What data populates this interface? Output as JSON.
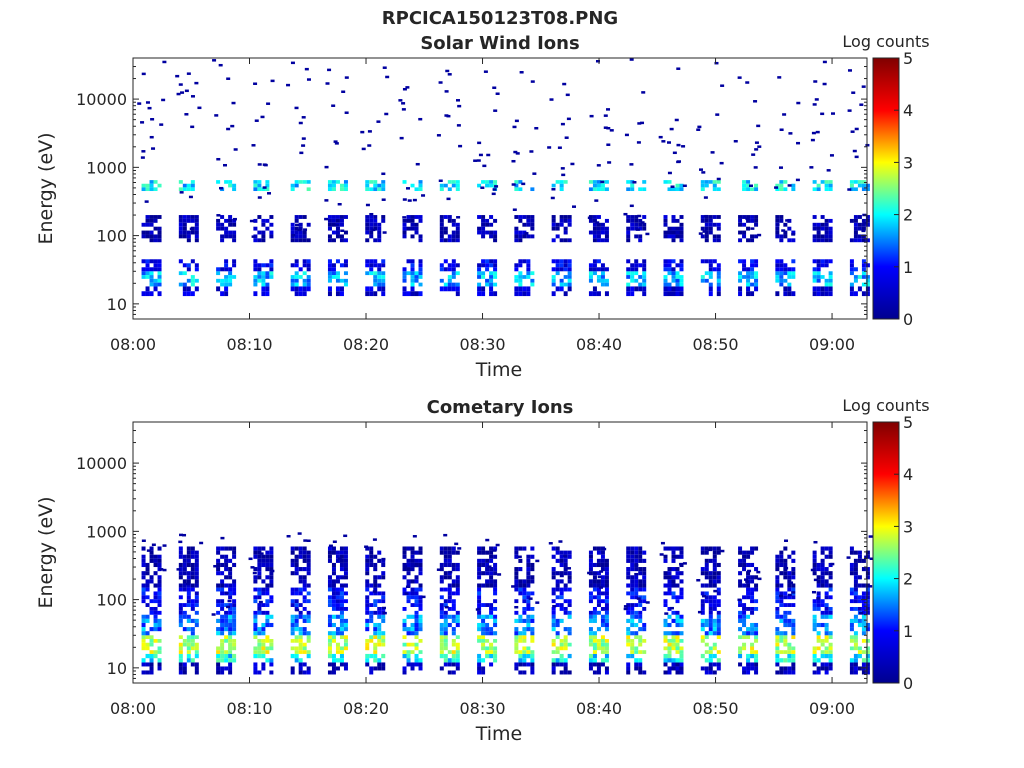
{
  "figure": {
    "title": "RPCICA150123T08.PNG"
  },
  "colormap": {
    "name": "jet",
    "stops": [
      "#00008f",
      "#0000ff",
      "#00ffff",
      "#ffff00",
      "#ff0000",
      "#800000"
    ]
  },
  "chart_data": [
    {
      "type": "heatmap",
      "title": "Solar Wind Ions",
      "xlabel": "Time",
      "ylabel": "Energy (eV)",
      "x_ticks": [
        "08:00",
        "08:10",
        "08:20",
        "08:30",
        "08:40",
        "08:50",
        "09:00"
      ],
      "x_range_minutes": [
        0,
        63
      ],
      "y_scale": "log",
      "y_ticks": [
        10,
        100,
        1000,
        10000
      ],
      "y_ticks_labels": [
        "10",
        "100",
        "1000",
        "10000"
      ],
      "ylim": [
        6,
        40000
      ],
      "colorbar": {
        "label": "Log counts",
        "ticks": [
          "0",
          "1",
          "2",
          "3",
          "4",
          "5"
        ],
        "range": [
          0,
          5
        ]
      },
      "sweep_period_minutes": 3.2,
      "n_sweeps": 20,
      "bands": [
        {
          "energy_eV": [
            13,
            18
          ],
          "log_counts": 0.6
        },
        {
          "energy_eV": [
            18,
            30
          ],
          "log_counts": 1.7
        },
        {
          "energy_eV": [
            30,
            45
          ],
          "log_counts": 0.8
        },
        {
          "energy_eV": [
            80,
            200
          ],
          "log_counts": 0.3
        },
        {
          "energy_eV": [
            450,
            650
          ],
          "log_counts": 1.9
        }
      ]
    },
    {
      "type": "heatmap",
      "title": "Cometary Ions",
      "xlabel": "Time",
      "ylabel": "Energy (eV)",
      "x_ticks": [
        "08:00",
        "08:10",
        "08:20",
        "08:30",
        "08:40",
        "08:50",
        "09:00"
      ],
      "x_range_minutes": [
        0,
        63
      ],
      "y_scale": "log",
      "y_ticks": [
        10,
        100,
        1000,
        10000
      ],
      "y_ticks_labels": [
        "10",
        "100",
        "1000",
        "10000"
      ],
      "ylim": [
        6,
        40000
      ],
      "colorbar": {
        "label": "Log counts",
        "ticks": [
          "0",
          "1",
          "2",
          "3",
          "4",
          "5"
        ],
        "range": [
          0,
          5
        ]
      },
      "sweep_period_minutes": 3.2,
      "n_sweeps": 20,
      "bands": [
        {
          "energy_eV": [
            8,
            12
          ],
          "log_counts": 0.4
        },
        {
          "energy_eV": [
            12,
            16
          ],
          "log_counts": 2.0
        },
        {
          "energy_eV": [
            16,
            30
          ],
          "log_counts": 2.7
        },
        {
          "energy_eV": [
            30,
            60
          ],
          "log_counts": 1.5
        },
        {
          "energy_eV": [
            60,
            150
          ],
          "log_counts": 0.9
        },
        {
          "energy_eV": [
            150,
            600
          ],
          "log_counts": 0.3
        }
      ]
    }
  ]
}
